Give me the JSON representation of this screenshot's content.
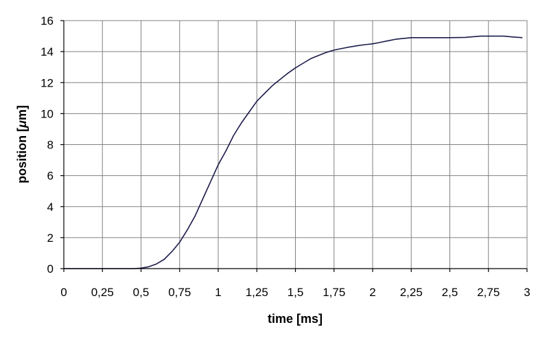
{
  "chart_data": {
    "type": "line",
    "title": "",
    "xlabel": "time [ms]",
    "ylabel_parts": [
      "position [",
      "μ",
      "m]"
    ],
    "xlim": [
      0,
      3
    ],
    "ylim": [
      0,
      16
    ],
    "x_ticks": [
      0,
      0.25,
      0.5,
      0.75,
      1,
      1.25,
      1.5,
      1.75,
      2,
      2.25,
      2.5,
      2.75,
      3
    ],
    "x_tick_labels": [
      "0",
      "0,25",
      "0,5",
      "0,75",
      "1",
      "1,25",
      "1,5",
      "1,75",
      "2",
      "2,25",
      "2,5",
      "2,75",
      "3"
    ],
    "y_ticks": [
      0,
      2,
      4,
      6,
      8,
      10,
      12,
      14,
      16
    ],
    "y_tick_labels": [
      "0",
      "2",
      "4",
      "6",
      "8",
      "10",
      "12",
      "14",
      "16"
    ],
    "grid": true,
    "line_color": "#1a1a4a",
    "series": [
      {
        "x": [
          0,
          0.25,
          0.45,
          0.5,
          0.55,
          0.6,
          0.65,
          0.7,
          0.75,
          0.8,
          0.85,
          0.9,
          0.95,
          1.0,
          1.05,
          1.1,
          1.15,
          1.2,
          1.25,
          1.3,
          1.35,
          1.4,
          1.45,
          1.5,
          1.55,
          1.6,
          1.65,
          1.7,
          1.75,
          1.8,
          1.85,
          1.9,
          1.95,
          2.0,
          2.05,
          2.1,
          2.15,
          2.2,
          2.25,
          2.3,
          2.4,
          2.5,
          2.6,
          2.7,
          2.8,
          2.85,
          2.9,
          2.97
        ],
        "y": [
          0,
          0,
          0,
          0.03,
          0.12,
          0.3,
          0.6,
          1.1,
          1.7,
          2.5,
          3.4,
          4.5,
          5.6,
          6.7,
          7.6,
          8.6,
          9.4,
          10.1,
          10.8,
          11.3,
          11.8,
          12.2,
          12.6,
          12.95,
          13.25,
          13.55,
          13.75,
          13.95,
          14.1,
          14.2,
          14.3,
          14.38,
          14.45,
          14.5,
          14.6,
          14.7,
          14.8,
          14.85,
          14.9,
          14.9,
          14.9,
          14.9,
          14.92,
          15.0,
          15.0,
          15.0,
          14.95,
          14.9
        ]
      }
    ]
  }
}
